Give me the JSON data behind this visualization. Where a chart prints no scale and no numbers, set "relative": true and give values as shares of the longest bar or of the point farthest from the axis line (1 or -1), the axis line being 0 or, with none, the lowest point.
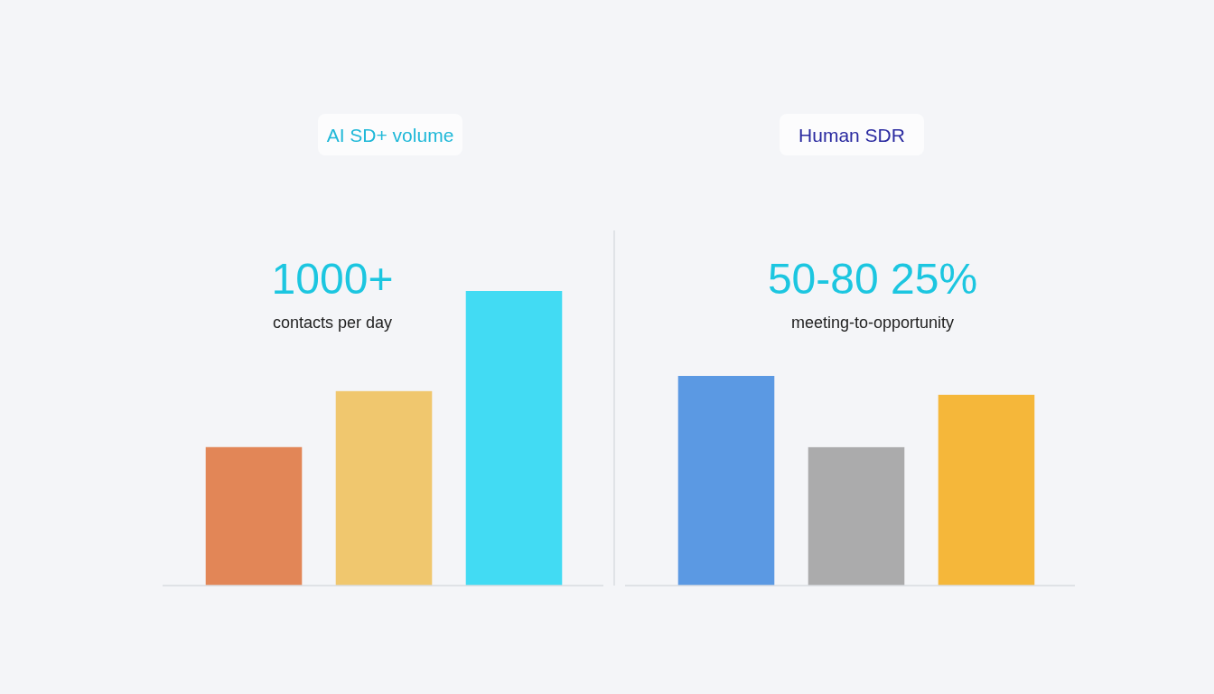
{
  "chart_data": [
    {
      "type": "bar",
      "title": "AI SD+ volume",
      "categories": [
        null,
        null,
        null
      ],
      "values": [
        0.47,
        0.66,
        1
      ],
      "colors": [
        "#e07a45",
        "#f0c25e",
        "#2fd8f2"
      ],
      "relative": true,
      "annotations": [
        "1000+",
        "contacts per day"
      ]
    },
    {
      "type": "bar",
      "title": "Human SDR",
      "categories": [
        null,
        null,
        null
      ],
      "values": [
        1,
        0.66,
        0.91
      ],
      "colors": [
        "#4a8fe0",
        "#a3a3a3",
        "#f5b025"
      ],
      "relative": true,
      "annotations": [
        "50-80 25%",
        "meeting-to-opportunity"
      ]
    }
  ]
}
